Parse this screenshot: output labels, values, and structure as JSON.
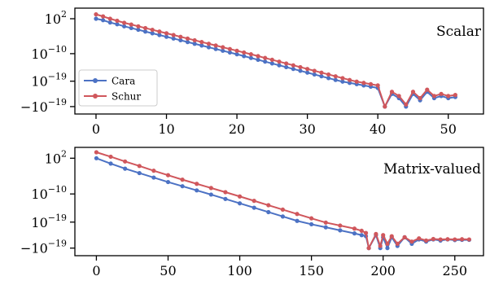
{
  "chart_data": [
    {
      "type": "line",
      "title": "Scalar",
      "scale": "symlog",
      "x_range": [
        -3,
        55
      ],
      "x_ticks": [
        0,
        10,
        20,
        30,
        40,
        50
      ],
      "y_ticks": [
        {
          "label_base": "10",
          "label_exp": "2",
          "sign": ""
        },
        {
          "label_base": "10",
          "label_exp": "−10",
          "sign": ""
        },
        {
          "label_base": "10",
          "label_exp": "−19",
          "sign": ""
        },
        {
          "label_base": "10",
          "label_exp": "−19",
          "sign": "−"
        }
      ],
      "legend": {
        "position": "left",
        "entries": [
          "Cara",
          "Schur"
        ]
      },
      "colors": {
        "Cara": "#4c72c4",
        "Schur": "#d0575c"
      },
      "series": [
        {
          "name": "Cara",
          "x": [
            0,
            1,
            2,
            3,
            4,
            5,
            6,
            7,
            8,
            9,
            10,
            11,
            12,
            13,
            14,
            15,
            16,
            17,
            18,
            19,
            20,
            21,
            22,
            23,
            24,
            25,
            26,
            27,
            28,
            29,
            30,
            31,
            32,
            33,
            34,
            35,
            36,
            37,
            38,
            39,
            40,
            41,
            42,
            43,
            44,
            45,
            46,
            47,
            48,
            49,
            50,
            51
          ],
          "y": [
            2,
            1.5,
            0.7,
            0.1,
            -0.6,
            -1.2,
            -1.8,
            -2.4,
            -3,
            -3.6,
            -4.2,
            -4.8,
            -5.4,
            -6,
            -6.6,
            -7.2,
            -7.8,
            -8.4,
            -9,
            -9.6,
            -10.2,
            -10.8,
            -11.4,
            -12,
            -12.6,
            -13.2,
            -13.8,
            -14.4,
            -15,
            -15.6,
            -16.2,
            -16.8,
            -17.4,
            -18,
            -18.6,
            -19.2,
            -19.8,
            -20.4,
            -21,
            -21.6,
            -22.2,
            -32,
            -25,
            -27,
            -31,
            -25,
            -28,
            -24,
            -27,
            -26,
            -27,
            -26.5
          ]
        },
        {
          "name": "Schur",
          "x": [
            0,
            1,
            2,
            3,
            4,
            5,
            6,
            7,
            8,
            9,
            10,
            11,
            12,
            13,
            14,
            15,
            16,
            17,
            18,
            19,
            20,
            21,
            22,
            23,
            24,
            25,
            26,
            27,
            28,
            29,
            30,
            31,
            32,
            33,
            34,
            35,
            36,
            37,
            38,
            39,
            40,
            41,
            42,
            43,
            44,
            45,
            46,
            47,
            48,
            49,
            50,
            51
          ],
          "y": [
            3.5,
            2.8,
            2,
            1.3,
            0.6,
            0,
            -0.6,
            -1.2,
            -1.8,
            -2.4,
            -3,
            -3.6,
            -4.2,
            -4.8,
            -5.4,
            -6,
            -6.6,
            -7.2,
            -7.8,
            -8.4,
            -9,
            -9.6,
            -10.2,
            -10.8,
            -11.4,
            -12,
            -12.6,
            -13.2,
            -13.8,
            -14.4,
            -15,
            -15.6,
            -16.2,
            -16.8,
            -17.4,
            -18,
            -18.6,
            -19.2,
            -19.8,
            -20.4,
            -21,
            -31,
            -24,
            -26,
            -30,
            -24,
            -27,
            -23,
            -26,
            -25,
            -26,
            -25.5
          ]
        }
      ]
    },
    {
      "type": "line",
      "title": "Matrix-valued",
      "scale": "symlog",
      "x_range": [
        -15,
        270
      ],
      "x_ticks": [
        0,
        50,
        100,
        150,
        200,
        250
      ],
      "y_ticks": [
        {
          "label_base": "10",
          "label_exp": "2",
          "sign": ""
        },
        {
          "label_base": "10",
          "label_exp": "−10",
          "sign": ""
        },
        {
          "label_base": "10",
          "label_exp": "−19",
          "sign": ""
        },
        {
          "label_base": "10",
          "label_exp": "−19",
          "sign": "−"
        }
      ],
      "colors": {
        "Cara": "#4c72c4",
        "Schur": "#d0575c"
      },
      "series": [
        {
          "name": "Cara",
          "x": [
            0,
            10,
            20,
            30,
            40,
            50,
            60,
            70,
            80,
            90,
            100,
            110,
            120,
            130,
            140,
            150,
            160,
            170,
            180,
            185,
            188,
            190,
            195,
            198,
            200,
            203,
            206,
            210,
            215,
            220,
            225,
            230,
            235,
            240,
            245,
            250,
            255,
            260
          ],
          "y": [
            2,
            0.2,
            -1.5,
            -3,
            -4.5,
            -6,
            -7.4,
            -8.8,
            -10.2,
            -11.6,
            -13,
            -14.4,
            -15.8,
            -17.2,
            -18.6,
            -20,
            -21.4,
            -22.8,
            -24.2,
            -25,
            -25.5,
            -31,
            -25,
            -31,
            -26,
            -31,
            -26,
            -30,
            -26,
            -29,
            -27,
            -28,
            -27,
            -27.5,
            -27,
            -27.3,
            -27.2,
            -27.2
          ]
        },
        {
          "name": "Schur",
          "x": [
            0,
            10,
            20,
            30,
            40,
            50,
            60,
            70,
            80,
            90,
            100,
            110,
            120,
            130,
            140,
            150,
            160,
            170,
            180,
            185,
            188,
            190,
            195,
            198,
            200,
            203,
            206,
            210,
            215,
            220,
            225,
            230,
            235,
            240,
            245,
            250,
            255,
            260
          ],
          "y": [
            4,
            2.5,
            0.9,
            -0.6,
            -2.2,
            -3.7,
            -5.2,
            -6.6,
            -8,
            -9.4,
            -10.8,
            -12.2,
            -13.6,
            -15,
            -16.4,
            -17.8,
            -19.2,
            -20.6,
            -22,
            -23,
            -24,
            -31,
            -24.5,
            -30,
            -25,
            -29,
            -25.5,
            -29,
            -26,
            -28,
            -26.5,
            -27.5,
            -26.8,
            -27,
            -26.9,
            -27,
            -26.9,
            -27
          ]
        }
      ]
    }
  ]
}
